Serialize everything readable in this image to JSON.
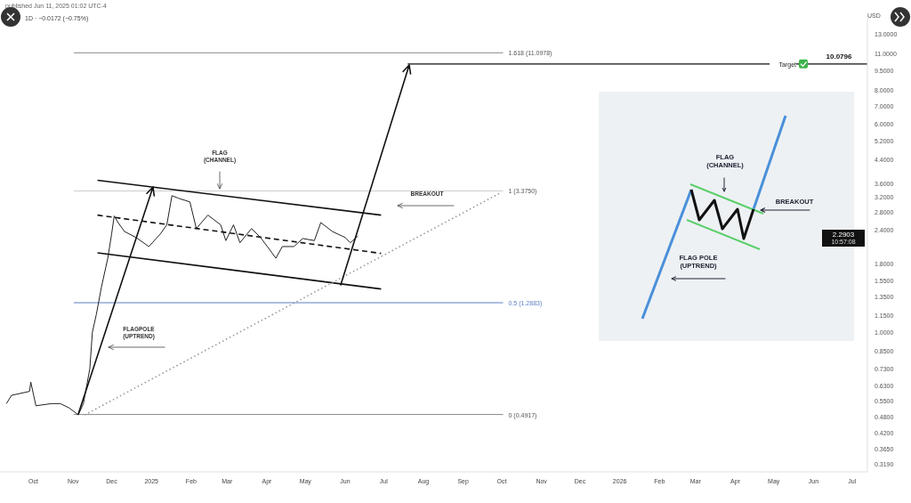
{
  "chart_data": {
    "type": "line",
    "title": "published Jun 11, 2025 01:02 UTC-4",
    "subtitle": "1D · −0.0172 (−0.75%)",
    "ylabel": "USD",
    "log": "y",
    "x": [
      "2024-09-10",
      "2024-09-14",
      "2024-09-28",
      "2024-09-29",
      "2024-10-03",
      "2024-10-15",
      "2024-10-22",
      "2024-10-29",
      "2024-11-05",
      "2024-11-09",
      "2024-11-14",
      "2024-11-16",
      "2024-11-19",
      "2024-11-23",
      "2024-11-28",
      "2024-12-01",
      "2024-12-03",
      "2024-12-06",
      "2024-12-11",
      "2024-12-20",
      "2024-12-30",
      "2025-01-08",
      "2025-01-13",
      "2025-01-17",
      "2025-01-22",
      "2025-01-31",
      "2025-02-05",
      "2025-02-14",
      "2025-02-24",
      "2025-02-28",
      "2025-03-06",
      "2025-03-11",
      "2025-03-20",
      "2025-03-27",
      "2025-04-03",
      "2025-04-08",
      "2025-04-13",
      "2025-04-22",
      "2025-04-29",
      "2025-05-08",
      "2025-05-13",
      "2025-05-22",
      "2025-06-01",
      "2025-06-05",
      "2025-06-11"
    ],
    "series": [
      {
        "color": "#222222",
        "values": [
          0.54,
          0.58,
          0.6,
          0.65,
          0.53,
          0.54,
          0.54,
          0.52,
          0.49,
          0.54,
          0.73,
          1.0,
          1.16,
          1.47,
          1.89,
          2.33,
          2.72,
          2.57,
          2.38,
          2.26,
          2.09,
          2.33,
          2.52,
          3.24,
          3.17,
          3.07,
          2.44,
          2.74,
          2.52,
          2.2,
          2.52,
          2.16,
          2.44,
          2.26,
          2.04,
          1.89,
          2.09,
          2.09,
          2.24,
          2.2,
          2.57,
          2.38,
          2.26,
          2.16,
          2.29
        ]
      },
      {
        "color": "#111111",
        "x": [
          "2024-11-20",
          "2025-06-29"
        ],
        "values": [
          3.7,
          2.74
        ]
      },
      {
        "color": "#111111",
        "x": [
          "2024-11-20",
          "2025-06-29"
        ],
        "values": [
          1.98,
          1.45
        ]
      },
      {
        "color": "#111111",
        "line_style": "dashed",
        "x": [
          "2024-11-20",
          "2025-06-29"
        ],
        "values": [
          2.74,
          1.97
        ]
      },
      {
        "color": "#999999",
        "line_style": "dotted",
        "x": [
          "2024-11-10",
          "2025-09-29"
        ],
        "values": [
          0.49,
          3.3
        ]
      }
    ],
    "xlim": [
      "2024-09-05",
      "2026-07-13"
    ],
    "xticks": [
      {
        "value": "2024-10",
        "label": "Oct"
      },
      {
        "value": "2024-11",
        "label": "Nov"
      },
      {
        "value": "2024-12",
        "label": "Dec"
      },
      {
        "value": "2025-01",
        "label": "2025"
      },
      {
        "value": "2025-02",
        "label": "Feb"
      },
      {
        "value": "2025-03",
        "label": "Mar"
      },
      {
        "value": "2025-04",
        "label": "Apr"
      },
      {
        "value": "2025-05",
        "label": "May"
      },
      {
        "value": "2025-06",
        "label": "Jun"
      },
      {
        "value": "2025-07",
        "label": "Jul"
      },
      {
        "value": "2025-08",
        "label": "Aug"
      },
      {
        "value": "2025-09",
        "label": "Sep"
      },
      {
        "value": "2025-10",
        "label": "Oct"
      },
      {
        "value": "2025-11",
        "label": "Nov"
      },
      {
        "value": "2025-12",
        "label": "Dec"
      },
      {
        "value": "2026-01",
        "label": "2026"
      },
      {
        "value": "2026-02",
        "label": "Feb"
      },
      {
        "value": "2026-03",
        "label": "Mar"
      },
      {
        "value": "2026-04",
        "label": "Apr"
      },
      {
        "value": "2026-05",
        "label": "May"
      },
      {
        "value": "2026-06",
        "label": "Jun"
      },
      {
        "value": "2026-07",
        "label": "Jul"
      }
    ],
    "ylim": [
      0.3,
      15
    ],
    "yticks": [
      {
        "value": 0.319,
        "label": "0.3190"
      },
      {
        "value": 0.365,
        "label": "0.3650"
      },
      {
        "value": 0.42,
        "label": "0.4200"
      },
      {
        "value": 0.48,
        "label": "0.4800"
      },
      {
        "value": 0.55,
        "label": "0.5500"
      },
      {
        "value": 0.63,
        "label": "0.6300"
      },
      {
        "value": 0.73,
        "label": "0.7300"
      },
      {
        "value": 0.85,
        "label": "0.8500"
      },
      {
        "value": 1,
        "label": "1.0000"
      },
      {
        "value": 1.15,
        "label": "1.1500"
      },
      {
        "value": 1.35,
        "label": "1.3500"
      },
      {
        "value": 1.55,
        "label": "1.5500"
      },
      {
        "value": 1.8,
        "label": "1.8000"
      },
      {
        "value": 2.4,
        "label": "2.4000"
      },
      {
        "value": 2.8,
        "label": "2.8000"
      },
      {
        "value": 3.2,
        "label": "3.2000"
      },
      {
        "value": 3.6,
        "label": "3.6000"
      },
      {
        "value": 4.4,
        "label": "4.4000"
      },
      {
        "value": 5.2,
        "label": "5.2000"
      },
      {
        "value": 6,
        "label": "6.0000"
      },
      {
        "value": 7,
        "label": "7.0000"
      },
      {
        "value": 8,
        "label": "8.0000"
      },
      {
        "value": 9.5,
        "label": "9.5000"
      },
      {
        "value": 11,
        "label": "11.0000"
      },
      {
        "value": 13,
        "label": "13.0000"
      }
    ],
    "ref_lines": [
      {
        "axis": "y",
        "value": 11.0978,
        "label": "1.618 (11.0978)",
        "color": "#888888"
      },
      {
        "axis": "y",
        "value": 10.0796,
        "label": "Target",
        "color": "#111111"
      },
      {
        "axis": "y",
        "value": 3.375,
        "label": "1 (3.3750)",
        "color": "#cccccc"
      },
      {
        "axis": "y",
        "value": 1.2883,
        "label": "0.5 (1.2883)",
        "color": "#5b7fc4"
      },
      {
        "axis": "y",
        "value": 0.4917,
        "label": "0 (0.4917)",
        "color": "#888888"
      }
    ],
    "annotations": [
      "FLAG (CHANNEL)",
      "BREAKOUT",
      "FLAGPOLE (UPTREND)",
      "FLAG (CHANNEL)",
      "BREAKOUT",
      "FLAG POLE (UPTREND)",
      "2.2903",
      "10:57:08",
      "10.0796"
    ]
  }
}
